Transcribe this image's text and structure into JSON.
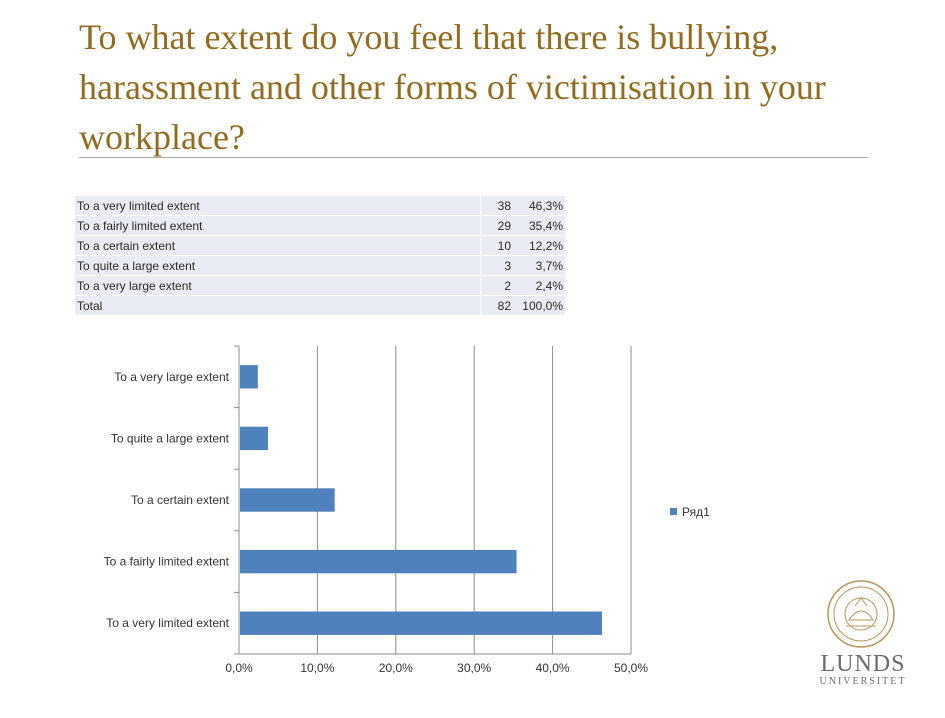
{
  "title": "To what extent do you feel that there is bullying, harassment and other forms of victimisation in your workplace?",
  "table": {
    "rows": [
      {
        "label": "To a very limited extent",
        "count": "38",
        "percent": "46,3%"
      },
      {
        "label": "To a fairly limited extent",
        "count": "29",
        "percent": "35,4%"
      },
      {
        "label": "To a certain extent",
        "count": "10",
        "percent": "12,2%"
      },
      {
        "label": "To quite a large extent",
        "count": "3",
        "percent": "3,7%"
      },
      {
        "label": "To a very large extent",
        "count": "2",
        "percent": "2,4%"
      },
      {
        "label": "Total",
        "count": "82",
        "percent": "100,0%"
      }
    ]
  },
  "chart_data": {
    "type": "bar",
    "orientation": "horizontal",
    "categories": [
      "To a very limited extent",
      "To a fairly limited extent",
      "To a certain extent",
      "To quite a large extent",
      "To a very large extent"
    ],
    "series": [
      {
        "name": "Ряд1",
        "values": [
          46.3,
          35.4,
          12.2,
          3.7,
          2.4
        ]
      }
    ],
    "xlim": [
      0,
      50
    ],
    "xticks": [
      "0,0%",
      "10,0%",
      "20,0%",
      "30,0%",
      "40,0%",
      "50,0%"
    ],
    "grid": true,
    "legend": "right",
    "color": "#4f81bd"
  },
  "logo": {
    "name": "LUNDS",
    "sub": "UNIVERSITET"
  }
}
